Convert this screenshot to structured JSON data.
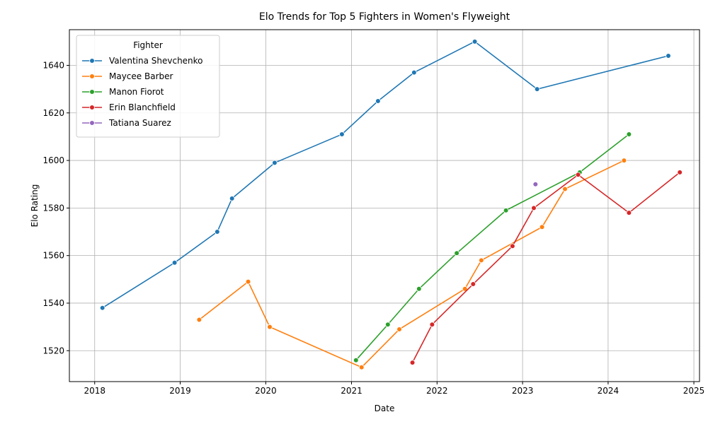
{
  "chart_data": {
    "type": "line",
    "title": "Elo Trends for Top 5 Fighters in Women's Flyweight",
    "xlabel": "Date",
    "ylabel": "Elo Rating",
    "x_axis": "date",
    "xlim": [
      "2017-09-15",
      "2025-01-25"
    ],
    "ylim": [
      1507,
      1655
    ],
    "x_ticks": [
      "2018",
      "2019",
      "2020",
      "2021",
      "2022",
      "2023",
      "2024",
      "2025"
    ],
    "y_ticks": [
      1520,
      1540,
      1560,
      1580,
      1600,
      1620,
      1640
    ],
    "grid": true,
    "legend": {
      "title": "Fighter",
      "placement": "top-left"
    },
    "series": [
      {
        "name": "Valentina Shevchenko",
        "color": "#1f77b4",
        "points": [
          {
            "x": "2018-02-03",
            "y": 1538
          },
          {
            "x": "2018-12-08",
            "y": 1557
          },
          {
            "x": "2019-06-08",
            "y": 1570
          },
          {
            "x": "2019-08-10",
            "y": 1584
          },
          {
            "x": "2020-02-08",
            "y": 1599
          },
          {
            "x": "2020-11-21",
            "y": 1611
          },
          {
            "x": "2021-04-24",
            "y": 1625
          },
          {
            "x": "2021-09-25",
            "y": 1637
          },
          {
            "x": "2022-06-11",
            "y": 1650
          },
          {
            "x": "2023-03-04",
            "y": 1630
          },
          {
            "x": "2024-09-14",
            "y": 1644
          }
        ]
      },
      {
        "name": "Maycee Barber",
        "color": "#ff7f0e",
        "points": [
          {
            "x": "2019-03-23",
            "y": 1533
          },
          {
            "x": "2019-10-18",
            "y": 1549
          },
          {
            "x": "2020-01-18",
            "y": 1530
          },
          {
            "x": "2021-02-13",
            "y": 1513
          },
          {
            "x": "2021-07-24",
            "y": 1529
          },
          {
            "x": "2022-04-30",
            "y": 1546
          },
          {
            "x": "2022-07-09",
            "y": 1558
          },
          {
            "x": "2023-03-25",
            "y": 1572
          },
          {
            "x": "2023-07-01",
            "y": 1588
          },
          {
            "x": "2024-03-09",
            "y": 1600
          }
        ]
      },
      {
        "name": "Manon Fiorot",
        "color": "#2ca02c",
        "points": [
          {
            "x": "2021-01-20",
            "y": 1516
          },
          {
            "x": "2021-06-05",
            "y": 1531
          },
          {
            "x": "2021-10-16",
            "y": 1546
          },
          {
            "x": "2022-03-26",
            "y": 1561
          },
          {
            "x": "2022-10-22",
            "y": 1579
          },
          {
            "x": "2023-09-02",
            "y": 1595
          },
          {
            "x": "2024-03-30",
            "y": 1611
          }
        ]
      },
      {
        "name": "Erin Blanchfield",
        "color": "#d62728",
        "points": [
          {
            "x": "2021-09-18",
            "y": 1515
          },
          {
            "x": "2021-12-11",
            "y": 1531
          },
          {
            "x": "2022-06-04",
            "y": 1548
          },
          {
            "x": "2022-11-19",
            "y": 1564
          },
          {
            "x": "2023-02-18",
            "y": 1580
          },
          {
            "x": "2023-08-26",
            "y": 1594
          },
          {
            "x": "2024-03-30",
            "y": 1578
          },
          {
            "x": "2024-11-02",
            "y": 1595
          }
        ]
      },
      {
        "name": "Tatiana Suarez",
        "color": "#9467bd",
        "points": [
          {
            "x": "2023-02-25",
            "y": 1590
          }
        ]
      }
    ]
  }
}
